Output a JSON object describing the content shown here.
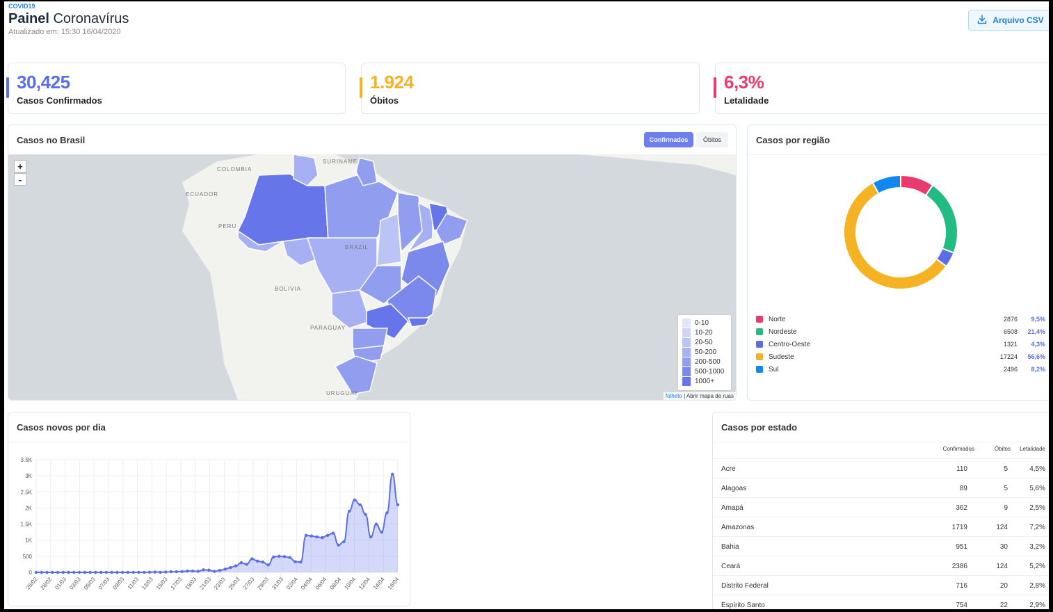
{
  "header": {
    "tag": "COVID19",
    "title_bold": "Painel",
    "title_rest": " Coronavírus",
    "updated": "Atualizado em:  15:30 16/04/2020",
    "csv_button": "Arquivo CSV"
  },
  "stats": {
    "confirmed": {
      "value": "30,425",
      "label": "Casos Confirmados",
      "color": "#5b6ee8"
    },
    "deaths": {
      "value": "1.924",
      "label": "Óbitos",
      "color": "#f5b323"
    },
    "lethality": {
      "value": "6,3%",
      "label": "Letalidade",
      "color": "#ea3a6e"
    }
  },
  "map": {
    "title": "Casos no Brasil",
    "toggle_confirmed": "Confirmados",
    "toggle_deaths": "Óbitos",
    "zoom_in": "+",
    "zoom_out": "-",
    "labels": {
      "colombia": "COLOMBIA",
      "suriname": "SURINAME",
      "ecuador": "ECUADOR",
      "peru": "PERU",
      "brazil": "BRAZIL",
      "bolivia": "BOLIVIA",
      "paraguay": "PARAGUAY",
      "uruguay": "URUGUAY"
    },
    "legend": [
      {
        "range": "0-10",
        "color": "#e3e6fb"
      },
      {
        "range": "10-20",
        "color": "#d0d5f8"
      },
      {
        "range": "20-50",
        "color": "#bcc3f5"
      },
      {
        "range": "50-200",
        "color": "#a6b0f2"
      },
      {
        "range": "200-500",
        "color": "#919def"
      },
      {
        "range": "500-1000",
        "color": "#7c89ec"
      },
      {
        "range": "1000+",
        "color": "#6676ea"
      }
    ],
    "attribution_link": "folheto",
    "attribution_text": " | Abrir mapa de ruas"
  },
  "regions": {
    "title": "Casos por região",
    "items": [
      {
        "name": "Norte",
        "value": "2876",
        "pct": "9,5%",
        "pct_num": 9.5,
        "color": "#ea3a6e"
      },
      {
        "name": "Nordeste",
        "value": "6508",
        "pct": "21,4%",
        "pct_num": 21.4,
        "color": "#22bb82"
      },
      {
        "name": "Centro-Oeste",
        "value": "1321",
        "pct": "4,3%",
        "pct_num": 4.3,
        "color": "#5b6ee8"
      },
      {
        "name": "Sudeste",
        "value": "17224",
        "pct": "56,6%",
        "pct_num": 56.6,
        "color": "#f5b323"
      },
      {
        "name": "Sul",
        "value": "2496",
        "pct": "8,2%",
        "pct_num": 8.2,
        "color": "#1188ee"
      }
    ]
  },
  "daily": {
    "title": "Casos novos por dia"
  },
  "chart_data": {
    "type": "area",
    "title": "Casos novos por dia",
    "x_tick_labels": [
      "26/02",
      "28/02",
      "01/03",
      "03/03",
      "05/03",
      "07/03",
      "09/03",
      "11/03",
      "13/03",
      "15/03",
      "17/03",
      "19/03",
      "21/03",
      "23/03",
      "25/03",
      "27/03",
      "29/03",
      "31/03",
      "02/04",
      "04/04",
      "06/04",
      "08/04",
      "10/04",
      "12/04",
      "14/04",
      "16/04"
    ],
    "y_tick_labels": [
      "0",
      "500",
      "1K",
      "1.5K",
      "2K",
      "2.5K",
      "3K",
      "3.5K"
    ],
    "ylim": [
      0,
      3500
    ],
    "grid": true,
    "series": [
      {
        "values": [
          0,
          0,
          0,
          0,
          0,
          0,
          0,
          0,
          0,
          0,
          0,
          0,
          0,
          0,
          0,
          0,
          0,
          0,
          0,
          0,
          2,
          5,
          10,
          5,
          10,
          20,
          20,
          25,
          40,
          40,
          30,
          80,
          70,
          30,
          60,
          100,
          150,
          200,
          300,
          250,
          420,
          350,
          320,
          230,
          480,
          500,
          490,
          460,
          330,
          320,
          1150,
          1130,
          1100,
          1080,
          1150,
          1220,
          850,
          950,
          1900,
          2250,
          2100,
          1800,
          1100,
          1500,
          1250,
          1850,
          3050,
          2100
        ]
      }
    ]
  },
  "states": {
    "title": "Casos por estado",
    "headers": {
      "confirmed": "Confirmados",
      "deaths": "Óbitos",
      "lethality": "Letalidade"
    },
    "rows": [
      {
        "state": "Acre",
        "confirmed": "110",
        "deaths": "5",
        "lethality": "4,5%"
      },
      {
        "state": "Alagoas",
        "confirmed": "89",
        "deaths": "5",
        "lethality": "5,6%"
      },
      {
        "state": "Amapá",
        "confirmed": "362",
        "deaths": "9",
        "lethality": "2,5%"
      },
      {
        "state": "Amazonas",
        "confirmed": "1719",
        "deaths": "124",
        "lethality": "7,2%"
      },
      {
        "state": "Bahia",
        "confirmed": "951",
        "deaths": "30",
        "lethality": "3,2%"
      },
      {
        "state": "Ceará",
        "confirmed": "2386",
        "deaths": "124",
        "lethality": "5,2%"
      },
      {
        "state": "Distrito Federal",
        "confirmed": "716",
        "deaths": "20",
        "lethality": "2,8%"
      },
      {
        "state": "Espírito Santo",
        "confirmed": "754",
        "deaths": "22",
        "lethality": "2,9%"
      }
    ]
  }
}
